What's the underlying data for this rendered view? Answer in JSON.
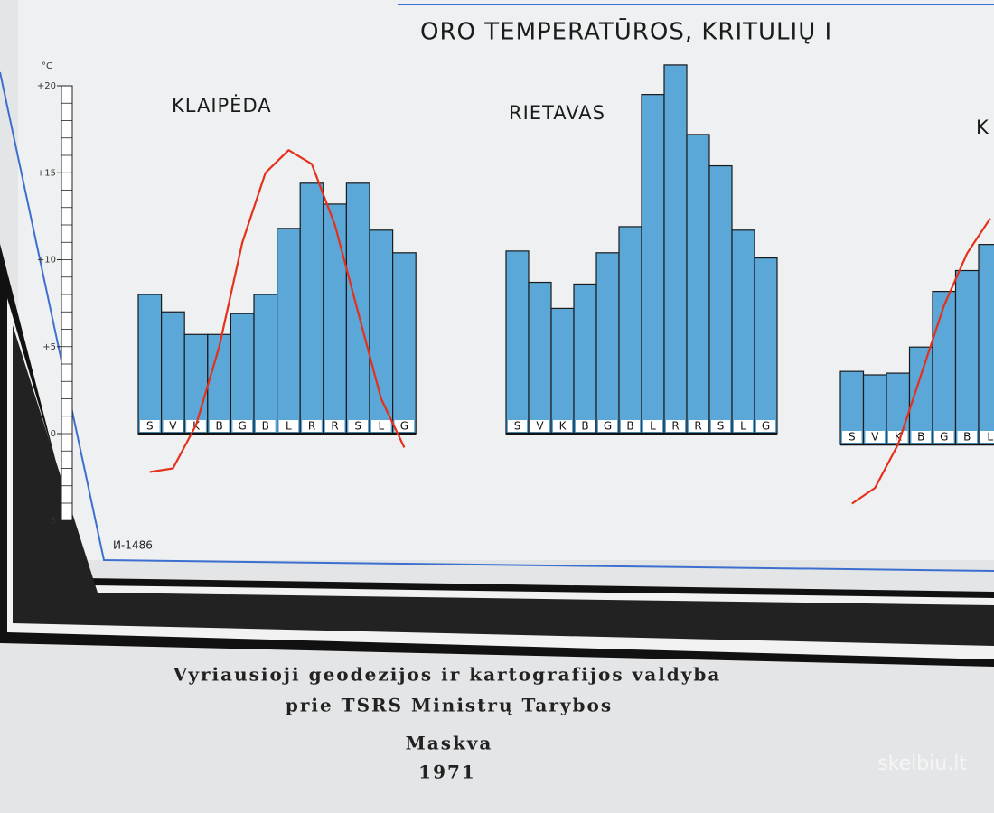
{
  "chart_data": [
    {
      "type": "bar",
      "title": "KLAIPĖDA",
      "categories": [
        "S",
        "V",
        "K",
        "B",
        "G",
        "B",
        "L",
        "R",
        "R",
        "S",
        "L",
        "G"
      ],
      "y_unit": "°C",
      "ylim": [
        -5,
        20
      ],
      "yticks": [
        {
          "value": 20,
          "label": "+20"
        },
        {
          "value": 15,
          "label": "+15"
        },
        {
          "value": 10,
          "label": "+10"
        },
        {
          "value": 5,
          "label": "+5"
        },
        0,
        {
          "value": -5,
          "label": "5"
        }
      ],
      "series": [
        {
          "type": "bar",
          "color": "#5aa7d8",
          "values": [
            8.0,
            7.0,
            5.7,
            5.7,
            6.9,
            8.0,
            11.8,
            14.4,
            13.2,
            14.4,
            11.7,
            10.4
          ]
        },
        {
          "type": "line",
          "color": "#e5301c",
          "values": [
            -2.2,
            -2.0,
            0.5,
            5.0,
            11.0,
            15.0,
            16.3,
            15.5,
            12.0,
            7.0,
            2.0,
            -0.8
          ]
        }
      ]
    },
    {
      "type": "bar",
      "title": "RIETAVAS",
      "categories": [
        "S",
        "V",
        "K",
        "B",
        "G",
        "B",
        "L",
        "R",
        "R",
        "S",
        "L",
        "G"
      ],
      "ylim": [
        -5,
        20
      ],
      "series": [
        {
          "type": "bar",
          "color": "#5aa7d8",
          "values": [
            10.5,
            8.7,
            7.2,
            8.6,
            10.4,
            11.9,
            19.5,
            21.2,
            17.2,
            15.4,
            11.7,
            10.1
          ]
        }
      ]
    },
    {
      "type": "bar",
      "title": "K",
      "categories": [
        "S",
        "V",
        "K",
        "B",
        "G",
        "B",
        "L"
      ],
      "ylim": [
        -5,
        20
      ],
      "series": [
        {
          "type": "bar",
          "color": "#5aa7d8",
          "values": [
            4.2,
            4.0,
            4.1,
            5.6,
            8.8,
            10.0,
            11.5
          ]
        },
        {
          "type": "line",
          "color": "#e5301c",
          "values": [
            -3.4,
            -2.5,
            0.0,
            4.0,
            8.0,
            11.0,
            13.0
          ]
        }
      ]
    }
  ],
  "header": {
    "title": "ORO TEMPERATŪROS, KRITULIŲ I"
  },
  "code": "И-1486",
  "footer": {
    "lines": [
      "Vyriausioji geodezijos ir kartografijos valdyba",
      "prie TSRS Ministrų Tarybos",
      "Maskva",
      "1971"
    ]
  },
  "watermark": "skelbiu.lt"
}
